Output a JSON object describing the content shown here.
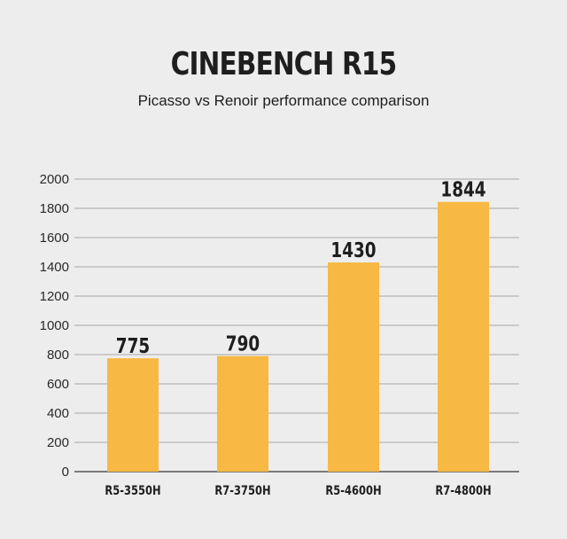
{
  "chart_data": {
    "type": "bar",
    "title": "CINEBENCH R15",
    "subtitle": "Picasso vs Renoir performance comparison",
    "categories": [
      "R5-3550H",
      "R7-3750H",
      "R5-4600H",
      "R7-4800H"
    ],
    "values": [
      775,
      790,
      1430,
      1844
    ],
    "data_labels": [
      "775",
      "790",
      "1430",
      "1844"
    ],
    "yticks": [
      "0",
      "200",
      "400",
      "600",
      "800",
      "1000",
      "1200",
      "1400",
      "1600",
      "1800",
      "2000"
    ],
    "ylim": [
      0,
      2000
    ],
    "xlabel": "",
    "ylabel": "",
    "grid": true,
    "legend": "none",
    "colors": {
      "bar": "#f7b944",
      "grid": "#a8a8a8",
      "text": "#1e1e1e",
      "background": "#ededed"
    }
  }
}
